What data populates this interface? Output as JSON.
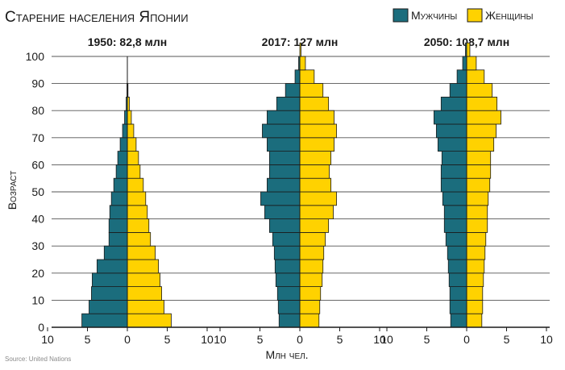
{
  "title": "Старение населения Японии",
  "source": "Source: United Nations",
  "legend": {
    "male": "Мужчины",
    "female": "Женщины"
  },
  "colors": {
    "male": "#1b6d7d",
    "female": "#ffd200",
    "stroke": "#1a1a1a"
  },
  "chart_data": {
    "type": "bar",
    "orientation": "horizontal",
    "ylabel": "Возраст",
    "xlabel": "Млн чел.",
    "y_ticks": [
      0,
      10,
      20,
      30,
      40,
      50,
      60,
      70,
      80,
      90,
      100
    ],
    "x_ticks": [
      10,
      5,
      0,
      5,
      10
    ],
    "ylim": [
      0,
      100
    ],
    "xlim": [
      -10,
      10
    ],
    "age_groups": [
      "0-4",
      "5-9",
      "10-14",
      "15-19",
      "20-24",
      "25-29",
      "30-34",
      "35-39",
      "40-44",
      "45-49",
      "50-54",
      "55-59",
      "60-64",
      "65-69",
      "70-74",
      "75-79",
      "80-84",
      "85-89",
      "90-94",
      "95-99",
      "100+"
    ],
    "pyramids": [
      {
        "title": "1950: 82,8 млн",
        "male": [
          5.7,
          4.8,
          4.5,
          4.4,
          3.8,
          2.9,
          2.3,
          2.3,
          2.2,
          2.0,
          1.7,
          1.4,
          1.2,
          0.9,
          0.6,
          0.35,
          0.15,
          0.05,
          0,
          0,
          0
        ],
        "female": [
          5.5,
          4.6,
          4.3,
          4.1,
          3.9,
          3.5,
          2.9,
          2.7,
          2.5,
          2.3,
          2.0,
          1.6,
          1.4,
          1.1,
          0.8,
          0.5,
          0.25,
          0.08,
          0,
          0,
          0
        ]
      },
      {
        "title": "2017: 127 млн",
        "male": [
          2.6,
          2.7,
          2.8,
          3.0,
          3.1,
          3.2,
          3.4,
          3.8,
          4.4,
          4.9,
          4.1,
          3.8,
          3.8,
          4.1,
          4.7,
          4.1,
          2.9,
          1.8,
          0.6,
          0.15,
          0
        ],
        "female": [
          2.4,
          2.5,
          2.6,
          2.8,
          2.9,
          3.0,
          3.2,
          3.6,
          4.2,
          4.6,
          3.9,
          3.7,
          3.9,
          4.3,
          4.6,
          4.3,
          3.6,
          2.9,
          1.8,
          0.7,
          0.15
        ]
      },
      {
        "title": "2050: 108,7 млн",
        "male": [
          2.0,
          2.1,
          2.1,
          2.2,
          2.3,
          2.4,
          2.6,
          2.8,
          2.8,
          3.0,
          3.2,
          3.2,
          3.1,
          3.6,
          3.8,
          4.1,
          3.2,
          2.1,
          1.2,
          0.5,
          0.15
        ],
        "female": [
          1.9,
          2.0,
          2.0,
          2.1,
          2.2,
          2.3,
          2.4,
          2.6,
          2.6,
          2.7,
          2.9,
          3.0,
          3.0,
          3.4,
          3.7,
          4.3,
          3.8,
          3.2,
          2.2,
          1.2,
          0.4
        ]
      }
    ]
  }
}
